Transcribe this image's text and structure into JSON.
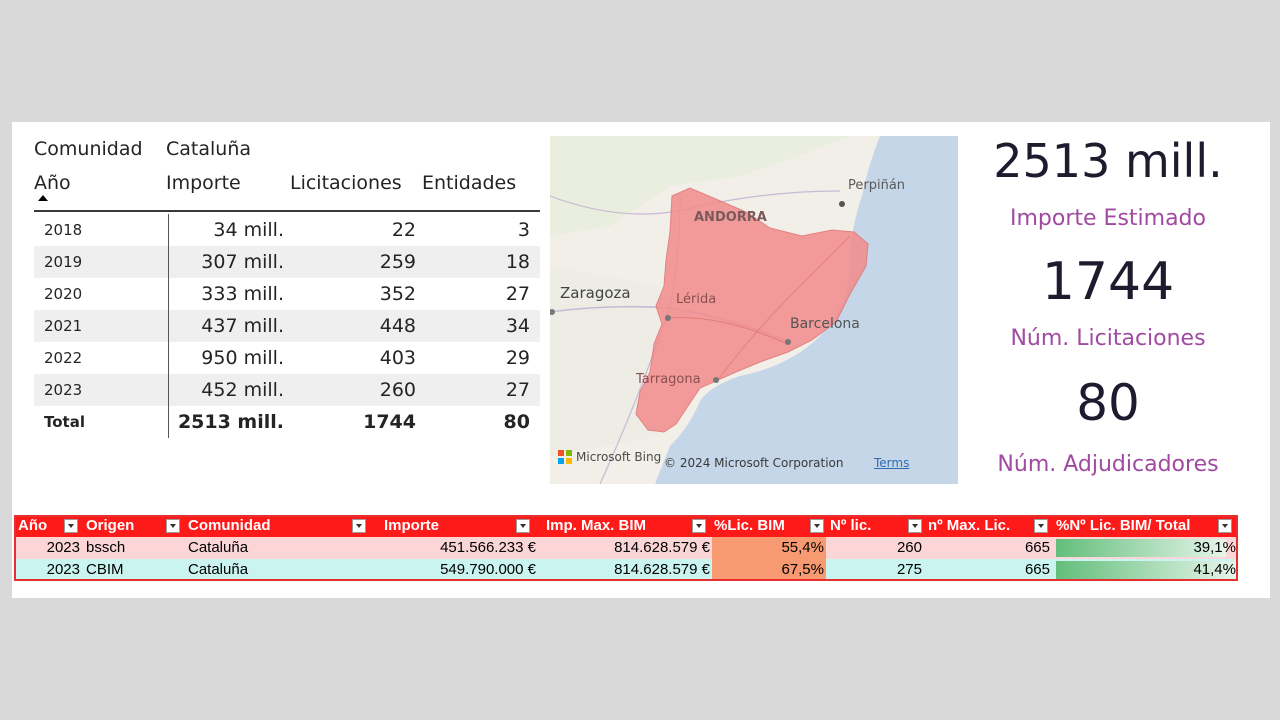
{
  "pivot": {
    "filter_label": "Comunidad",
    "filter_value": "Cataluña",
    "columns": [
      "Año",
      "Importe",
      "Licitaciones",
      "Entidades"
    ],
    "rows": [
      {
        "year": "2018",
        "importe": "34 mill.",
        "licitaciones": "22",
        "entidades": "3"
      },
      {
        "year": "2019",
        "importe": "307 mill.",
        "licitaciones": "259",
        "entidades": "18"
      },
      {
        "year": "2020",
        "importe": "333 mill.",
        "licitaciones": "352",
        "entidades": "27"
      },
      {
        "year": "2021",
        "importe": "437 mill.",
        "licitaciones": "448",
        "entidades": "34"
      },
      {
        "year": "2022",
        "importe": "950 mill.",
        "licitaciones": "403",
        "entidades": "29"
      },
      {
        "year": "2023",
        "importe": "452 mill.",
        "licitaciones": "260",
        "entidades": "27"
      }
    ],
    "total": {
      "year": "Total",
      "importe": "2513 mill.",
      "licitaciones": "1744",
      "entidades": "80"
    }
  },
  "map": {
    "labels": {
      "perpignan": "Perpiñán",
      "andorra": "ANDORRA",
      "zaragoza": "Zaragoza",
      "lerida": "Lérida",
      "barcelona": "Barcelona",
      "tarragona": "Tarragona"
    },
    "logo_text": "Microsoft Bing",
    "copyright": "© 2024 Microsoft Corporation",
    "terms": "Terms",
    "highlight_color": "#f28c8c"
  },
  "kpis": [
    {
      "value": "2513 mill.",
      "label": "Importe Estimado"
    },
    {
      "value": "1744",
      "label": "Núm. Licitaciones"
    },
    {
      "value": "80",
      "label": "Núm. Adjudicadores"
    }
  ],
  "excel": {
    "headers": [
      "Año",
      "Origen",
      "Comunidad",
      "Importe",
      "Imp. Max. BIM",
      "%Lic. BIM",
      "Nº lic.",
      "nº Max. Lic.",
      "%Nº Lic. BIM/ Total"
    ],
    "rows": [
      {
        "ano": "2023",
        "origen": "bssch",
        "comunidad": "Cataluña",
        "importe": "451.566.233 €",
        "imp_max": "814.628.579 €",
        "pct_lic": "55,4%",
        "n_lic": "260",
        "n_max": "665",
        "pct_total": "39,1%",
        "pct_total_value": 0.391
      },
      {
        "ano": "2023",
        "origen": "CBIM",
        "comunidad": "Cataluña",
        "importe": "549.790.000 €",
        "imp_max": "814.628.579 €",
        "pct_lic": "67,5%",
        "n_lic": "275",
        "n_max": "665",
        "pct_total": "41,4%",
        "pct_total_value": 0.414
      }
    ],
    "header_color": "#ff1a1a"
  }
}
